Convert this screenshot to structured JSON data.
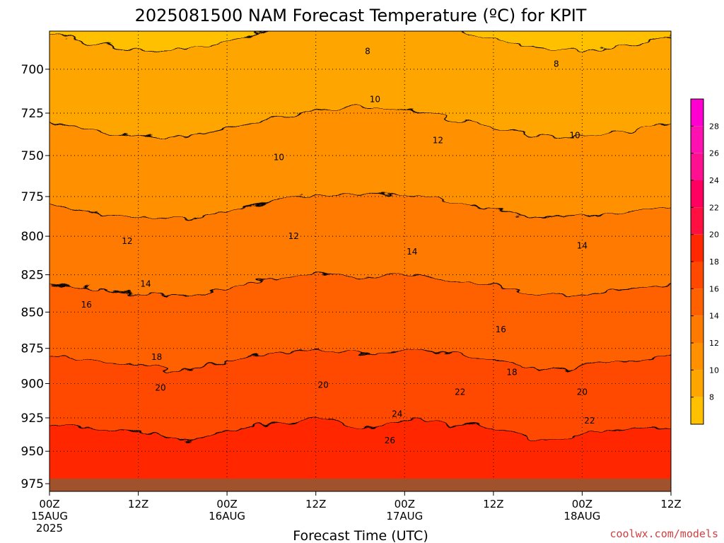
{
  "colors": {
    "levels": [
      "#ffc000",
      "#ffa500",
      "#ff9000",
      "#ff7a00",
      "#ff6000",
      "#ff4800",
      "#ff2800",
      "#ff1040",
      "#ff0060",
      "#ff1090",
      "#ff10b0",
      "#ff00d0"
    ],
    "ground": "#a0522d",
    "credit": "#d04040"
  },
  "chart_data": {
    "type": "heatmap",
    "title": "2025081500 NAM Forecast Temperature (ºC) for KPIT",
    "xlabel": "Forecast Time (UTC)",
    "ylabel": "",
    "credit": "coolwx.com/models",
    "x_ticks": [
      {
        "hours": 0,
        "line1": "00Z",
        "line2": "15AUG",
        "line3": "2025"
      },
      {
        "hours": 12,
        "line1": "12Z",
        "line2": "",
        "line3": ""
      },
      {
        "hours": 24,
        "line1": "00Z",
        "line2": "16AUG",
        "line3": ""
      },
      {
        "hours": 36,
        "line1": "12Z",
        "line2": "",
        "line3": ""
      },
      {
        "hours": 48,
        "line1": "00Z",
        "line2": "17AUG",
        "line3": ""
      },
      {
        "hours": 60,
        "line1": "12Z",
        "line2": "",
        "line3": ""
      },
      {
        "hours": 72,
        "line1": "00Z",
        "line2": "18AUG",
        "line3": ""
      },
      {
        "hours": 84,
        "line1": "12Z",
        "line2": "",
        "line3": ""
      }
    ],
    "xlim": [
      0,
      84
    ],
    "y_ticks": [
      700,
      725,
      750,
      775,
      800,
      825,
      850,
      875,
      900,
      925,
      950,
      975
    ],
    "ylim": [
      981,
      679
    ],
    "y_scale": "log",
    "grid": true,
    "colorbar": {
      "ticks": [
        8,
        10,
        12,
        14,
        16,
        18,
        20,
        22,
        24,
        26,
        28
      ],
      "range": [
        6,
        30
      ],
      "placement": "right"
    },
    "contour_labels": [
      {
        "value": "8",
        "x": 43,
        "p": 690
      },
      {
        "value": "8",
        "x": 68.5,
        "p": 697
      },
      {
        "value": "10",
        "x": 44,
        "p": 717
      },
      {
        "value": "10",
        "x": 71,
        "p": 738
      },
      {
        "value": "10",
        "x": 31,
        "p": 751
      },
      {
        "value": "12",
        "x": 52.5,
        "p": 741
      },
      {
        "value": "12",
        "x": 10.5,
        "p": 803
      },
      {
        "value": "12",
        "x": 33,
        "p": 800
      },
      {
        "value": "14",
        "x": 49,
        "p": 810
      },
      {
        "value": "14",
        "x": 72,
        "p": 806
      },
      {
        "value": "14",
        "x": 13,
        "p": 831
      },
      {
        "value": "16",
        "x": 5,
        "p": 845
      },
      {
        "value": "16",
        "x": 61,
        "p": 862
      },
      {
        "value": "18",
        "x": 14.5,
        "p": 881
      },
      {
        "value": "18",
        "x": 62.5,
        "p": 892
      },
      {
        "value": "20",
        "x": 15,
        "p": 903
      },
      {
        "value": "20",
        "x": 37,
        "p": 901
      },
      {
        "value": "20",
        "x": 72,
        "p": 906
      },
      {
        "value": "22",
        "x": 55.5,
        "p": 906
      },
      {
        "value": "22",
        "x": 73,
        "p": 927
      },
      {
        "value": "24",
        "x": 47,
        "p": 922
      },
      {
        "value": "26",
        "x": 46,
        "p": 942
      }
    ]
  }
}
